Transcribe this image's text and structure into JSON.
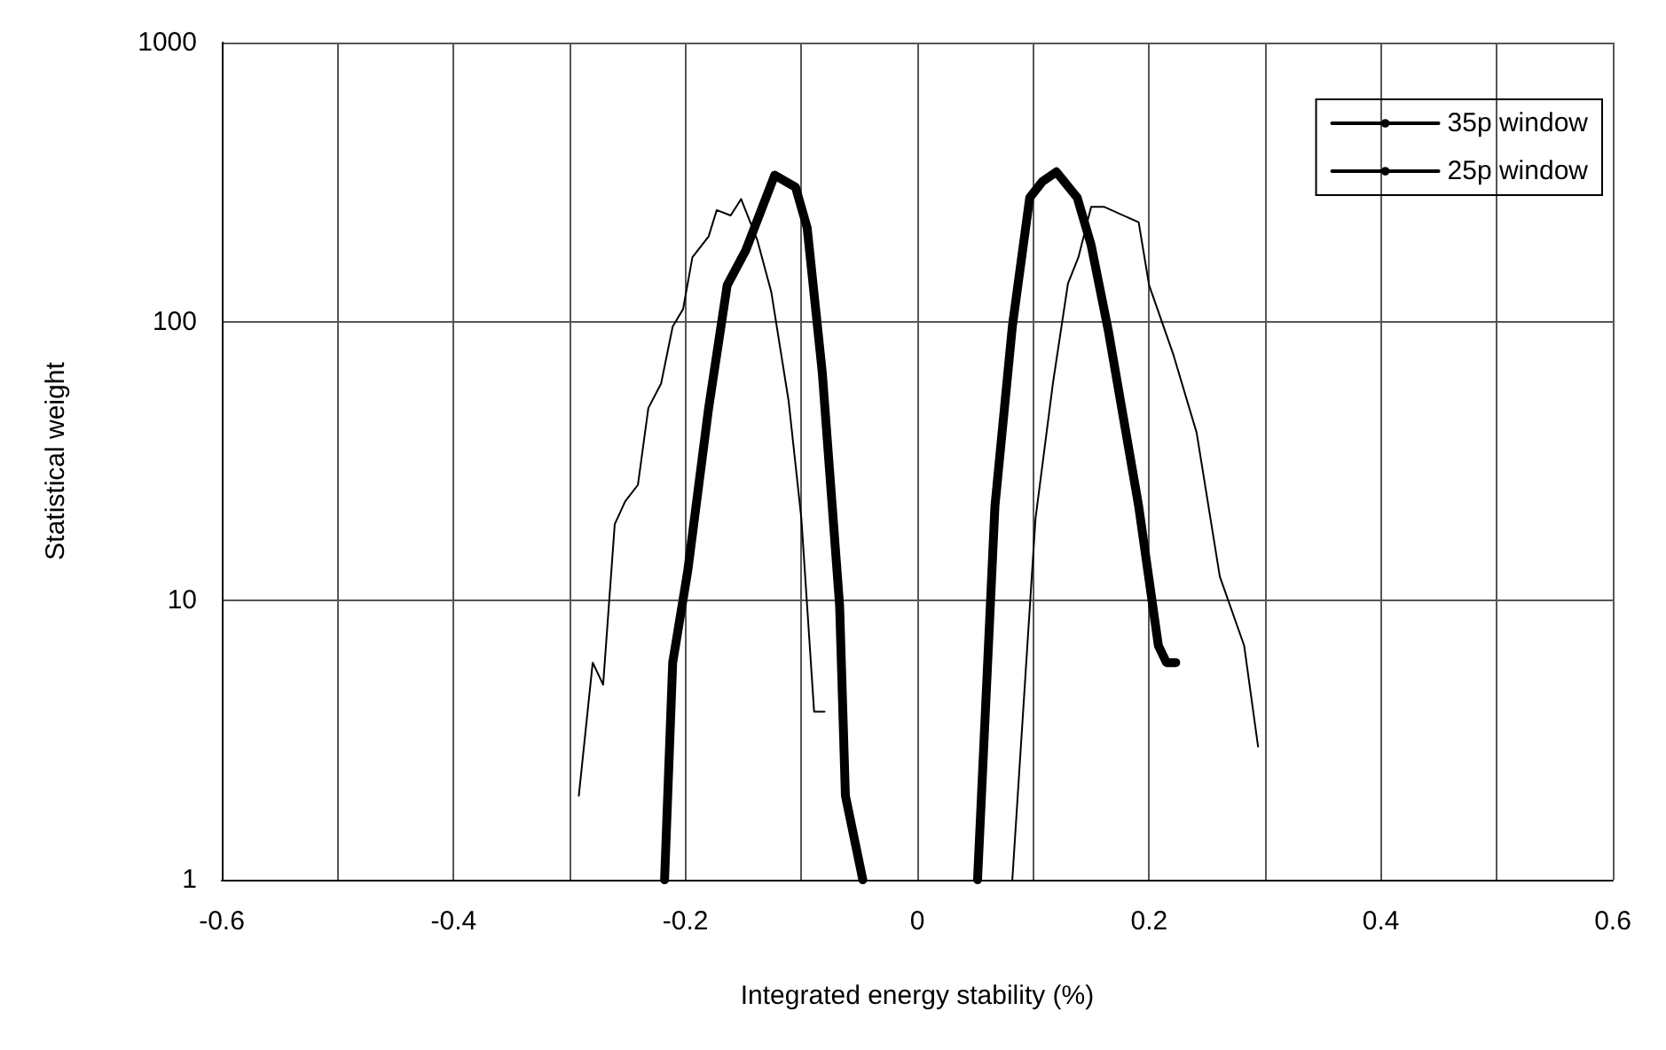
{
  "chart_data": {
    "type": "line",
    "xlabel": "Integrated energy stability (%)",
    "ylabel": "Statistical weight",
    "log": "y",
    "grid": true,
    "legend": "top right",
    "marker": "none",
    "line_style": "solid",
    "xlim": [
      -0.6,
      0.6
    ],
    "xticks": [
      -0.6,
      {
        "value": -0.5,
        "label": null
      },
      -0.4,
      {
        "value": -0.3,
        "label": null
      },
      -0.2,
      {
        "value": -0.1,
        "label": null
      },
      0,
      {
        "value": 0.1,
        "label": null
      },
      0.2,
      {
        "value": 0.3,
        "label": null
      },
      0.4,
      {
        "value": 0.5,
        "label": null
      },
      0.6
    ],
    "ylim": [
      1,
      1000
    ],
    "yticks": [
      1,
      10,
      100,
      1000
    ],
    "series": [
      {
        "name": "35p window",
        "color": "#000000",
        "x": [
          -0.218,
          -0.211,
          -0.198,
          -0.18,
          -0.164,
          -0.148,
          -0.123,
          -0.105,
          -0.095,
          -0.082,
          -0.067,
          -0.062,
          -0.047,
          0,
          0.052,
          0.067,
          0.082,
          0.097,
          0.108,
          0.12,
          0.138,
          0.15,
          0.165,
          0.191,
          0.208,
          0.215,
          0.223
        ],
        "values": [
          1,
          6,
          12.8,
          49,
          135,
          180,
          335,
          303,
          217,
          66,
          9.6,
          2,
          1,
          null,
          1,
          21.8,
          96,
          278,
          318,
          344,
          278,
          188,
          92,
          21.8,
          6.9,
          6,
          6
        ]
      },
      {
        "name": "25p window",
        "color": "#000000",
        "x": [
          -0.292,
          -0.28,
          -0.271,
          -0.261,
          -0.252,
          -0.241,
          -0.232,
          -0.221,
          -0.211,
          -0.202,
          -0.194,
          -0.18,
          -0.173,
          -0.161,
          -0.152,
          -0.138,
          -0.126,
          -0.111,
          -0.1,
          -0.089,
          -0.08,
          0,
          0.082,
          0.102,
          0.117,
          0.13,
          0.139,
          0.15,
          0.161,
          0.191,
          0.2,
          0.221,
          0.241,
          0.261,
          0.282,
          0.294
        ],
        "values": [
          2,
          6,
          5,
          18.8,
          22.7,
          26,
          49,
          60,
          96,
          111,
          170,
          202,
          251,
          240,
          275,
          196,
          128,
          52,
          19.7,
          4,
          4,
          null,
          1,
          19.7,
          60,
          137,
          170,
          258,
          258,
          227,
          135,
          76,
          40,
          12.2,
          6.9,
          3
        ]
      }
    ]
  }
}
